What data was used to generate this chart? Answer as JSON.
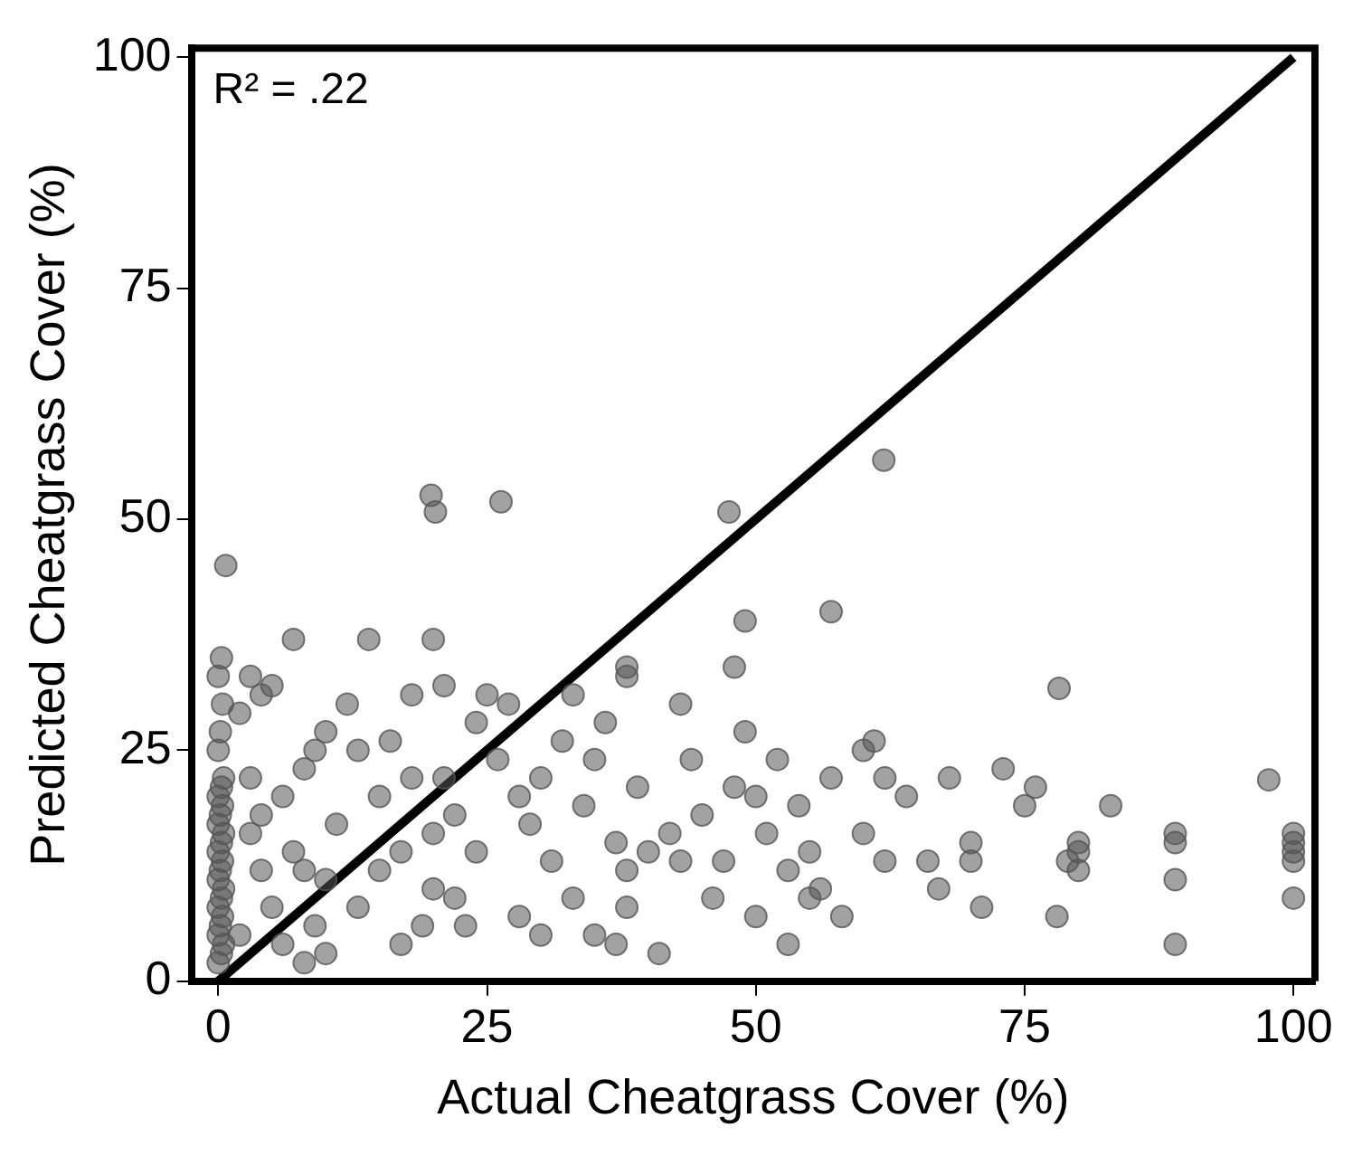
{
  "chart_data": {
    "type": "scatter",
    "xlabel": "Actual Cheatgrass Cover (%)",
    "ylabel": "Predicted Cheatgrass Cover (%)",
    "annotations": [
      "R² = .22"
    ],
    "xlim": [
      -2.5,
      102
    ],
    "ylim": [
      0,
      101
    ],
    "xticks": [
      0,
      25,
      50,
      75,
      100
    ],
    "yticks": [
      0,
      25,
      50,
      75,
      100
    ],
    "grid": false,
    "legend": false,
    "marker": "circle",
    "series": [
      {
        "type": "scatter",
        "color": "#555555",
        "x": [
          0,
          0.3,
          0.5,
          0,
          0.2,
          0.4,
          0,
          0.3,
          0.5,
          0,
          0.2,
          0.4,
          0,
          0.3,
          0.5,
          0,
          0.2,
          0.4,
          0,
          0.3,
          0.5,
          0,
          0.2,
          0.4,
          0,
          0.3,
          2,
          3,
          4,
          5,
          3,
          4,
          6,
          7,
          8,
          5,
          9,
          10,
          2,
          6,
          8,
          10,
          7,
          9,
          4,
          3,
          10,
          8,
          12,
          14,
          15,
          13,
          16,
          17,
          18,
          20,
          21,
          21,
          22,
          23,
          24,
          20,
          19,
          11,
          15,
          24,
          25,
          20,
          22,
          18,
          13,
          17,
          26,
          27,
          28,
          29,
          30,
          31,
          32,
          33,
          34,
          35,
          36,
          37,
          38,
          38,
          38,
          39,
          38,
          37,
          30,
          33,
          35,
          28,
          40,
          41,
          42,
          43,
          44,
          45,
          46,
          47,
          48,
          49,
          50,
          50,
          51,
          52,
          53,
          54,
          55,
          56,
          57,
          58,
          60,
          61,
          62,
          62,
          60,
          55,
          43,
          48,
          53,
          64,
          66,
          68,
          70,
          70,
          71,
          73,
          75,
          76,
          78,
          79,
          80,
          80,
          80,
          83,
          89,
          89,
          89,
          89,
          100,
          100,
          100,
          100,
          100,
          67,
          19.8,
          20.2,
          26.3,
          47.5,
          61.9,
          0.7,
          49,
          57,
          78.2,
          97.7
        ],
        "values": [
          2,
          3,
          4,
          5,
          6,
          7,
          8,
          9,
          10,
          11,
          12,
          13,
          14,
          15,
          16,
          17,
          18,
          19,
          20,
          21,
          22,
          25,
          27,
          30,
          33,
          35,
          29,
          33,
          31,
          32,
          22,
          18,
          20,
          14,
          12,
          8,
          6,
          3,
          5,
          4,
          23,
          27,
          37,
          25,
          12,
          16,
          11,
          2,
          30,
          37,
          20,
          8,
          26,
          14,
          31,
          10,
          32,
          22,
          18,
          6,
          28,
          37,
          6,
          17,
          12,
          14,
          31,
          16,
          9,
          22,
          25,
          4,
          24,
          30,
          7,
          17,
          22,
          13,
          26,
          9,
          19,
          5,
          28,
          15,
          33,
          34,
          12,
          21,
          8,
          4,
          5,
          31,
          24,
          20,
          14,
          3,
          16,
          30,
          24,
          18,
          9,
          13,
          21,
          27,
          7,
          20,
          16,
          24,
          12,
          19,
          14,
          10,
          22,
          7,
          16,
          26,
          13,
          22,
          25,
          9,
          13,
          34,
          4,
          20,
          13,
          22,
          13,
          15,
          8,
          23,
          19,
          21,
          7,
          13,
          14,
          15,
          12,
          19,
          4,
          11,
          15,
          16,
          13,
          14,
          15,
          16,
          9,
          10,
          52.6,
          50.8,
          51.9,
          50.8,
          56.4,
          45,
          39,
          40,
          31.7,
          21.8
        ]
      },
      {
        "type": "line",
        "color": "#000000",
        "marker": "none",
        "x": [
          0,
          100
        ],
        "values": [
          0,
          100
        ]
      }
    ]
  }
}
